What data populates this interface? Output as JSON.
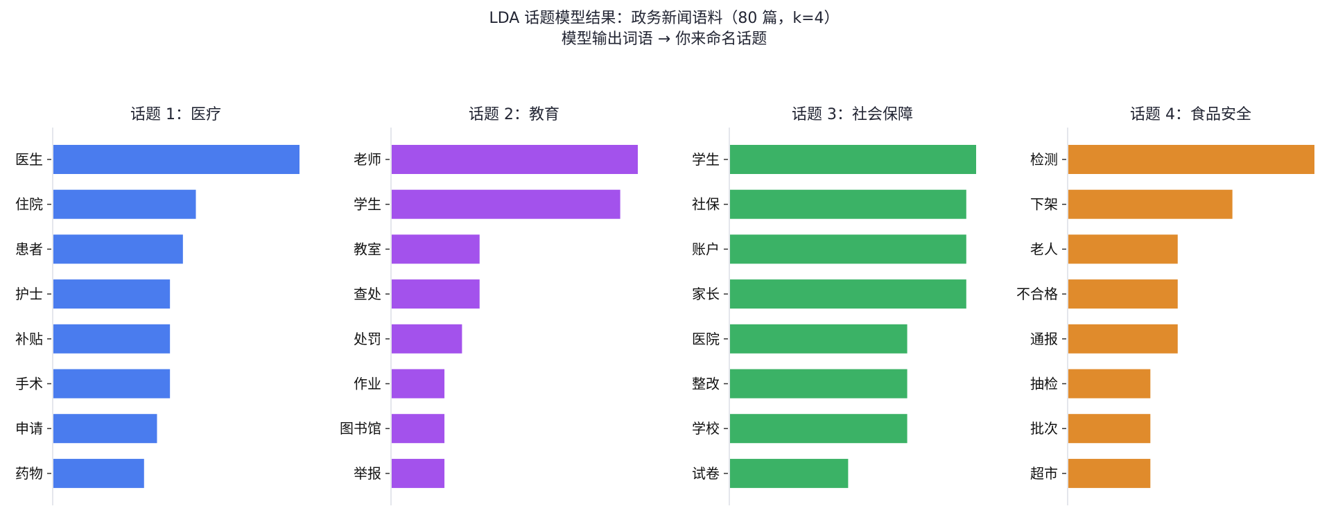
{
  "title": "LDA 话题模型结果：政务新闻语料（80 篇，k=4）",
  "subtitle": "模型输出词语 → 你来命名话题",
  "chart_data": [
    {
      "type": "bar",
      "orientation": "horizontal",
      "title": "话题 1：医疗",
      "color": "#4a7cee",
      "categories": [
        "医生",
        "住院",
        "患者",
        "护士",
        "补贴",
        "手术",
        "申请",
        "药物"
      ],
      "values": [
        19,
        11,
        10,
        9,
        9,
        9,
        8,
        7
      ]
    },
    {
      "type": "bar",
      "orientation": "horizontal",
      "title": "话题 2：教育",
      "color": "#a352ec",
      "categories": [
        "老师",
        "学生",
        "教室",
        "查处",
        "处罚",
        "作业",
        "图书馆",
        "举报"
      ],
      "values": [
        14,
        13,
        5,
        5,
        4,
        3,
        3,
        3
      ]
    },
    {
      "type": "bar",
      "orientation": "horizontal",
      "title": "话题 3：社会保障",
      "color": "#3bb266",
      "categories": [
        "学生",
        "社保",
        "账户",
        "家长",
        "医院",
        "整改",
        "学校",
        "试卷"
      ],
      "values": [
        25,
        24,
        24,
        24,
        18,
        18,
        18,
        12
      ]
    },
    {
      "type": "bar",
      "orientation": "horizontal",
      "title": "话题 4：食品安全",
      "color": "#e08b2c",
      "categories": [
        "检测",
        "下架",
        "老人",
        "不合格",
        "通报",
        "抽检",
        "批次",
        "超市"
      ],
      "values": [
        9,
        6,
        4,
        4,
        4,
        3,
        3,
        3
      ]
    }
  ]
}
